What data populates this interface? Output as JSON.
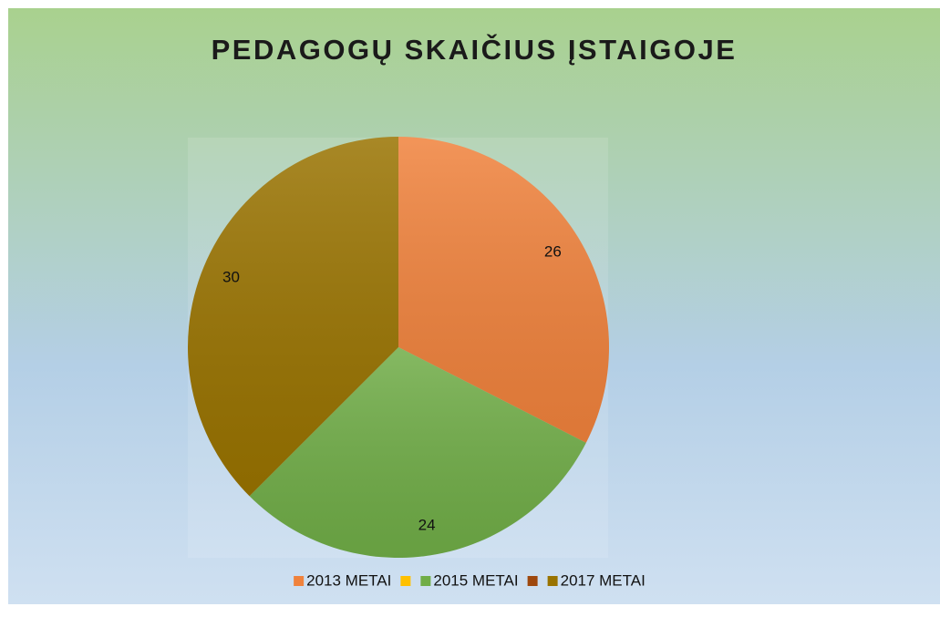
{
  "chart_data": {
    "type": "pie",
    "title": "PEDAGOGŲ SKAIČIUS ĮSTAIGOJE",
    "categories": [
      "2013 METAI",
      null,
      "2015 METAI",
      null,
      "2017 METAI"
    ],
    "values": [
      26,
      0,
      24,
      0,
      30
    ],
    "colors": [
      "#f0823c",
      "#ffc000",
      "#70ad47",
      "#9e480e",
      "#997300"
    ],
    "legend": "bottom"
  }
}
